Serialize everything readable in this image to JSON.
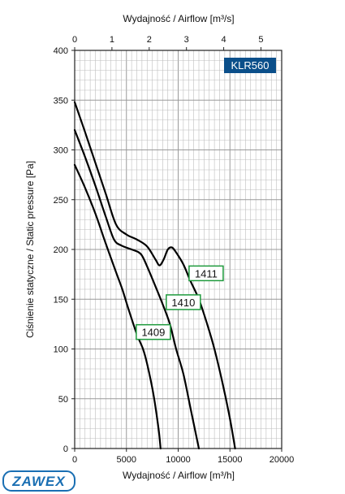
{
  "brand": {
    "logo_text": "ZAWEX",
    "color": "#1a6fb3"
  },
  "chart_data": {
    "type": "line",
    "model_badge": "KLR560",
    "model_badge_color": "#0b4f8a",
    "label_box_color": "#1e9a3c",
    "xlabel": "Wydajność / Airflow [m³/h]",
    "x2label": "Wydajność / Airflow [m³/s]",
    "ylabel": "Ciśnienie statyczne / Static pressure [Pa]",
    "xlim": [
      0,
      20000
    ],
    "ylim": [
      0,
      400
    ],
    "x2lim": [
      0,
      5.556
    ],
    "x_ticks": [
      "0",
      "5000",
      "10000",
      "15000",
      "20000"
    ],
    "x2_ticks": [
      "0",
      "1",
      "2",
      "3",
      "4",
      "5"
    ],
    "y_ticks": [
      "0",
      "50",
      "100",
      "150",
      "200",
      "250",
      "300",
      "350",
      "400"
    ],
    "grid": true,
    "series": [
      {
        "name": "1409",
        "x": [
          0,
          1000,
          2000,
          3000,
          4000,
          4600,
          5200,
          6000,
          6600,
          7000,
          7600,
          8100,
          8300
        ],
        "y": [
          285,
          262,
          236,
          206,
          177,
          160,
          140,
          115,
          100,
          85,
          55,
          20,
          0
        ]
      },
      {
        "name": "1410",
        "x": [
          0,
          1000,
          2000,
          3000,
          3800,
          4500,
          5500,
          6200,
          6600,
          7200,
          7800,
          8500,
          9200,
          9800,
          10500,
          11200,
          11700,
          12000
        ],
        "y": [
          320,
          293,
          264,
          233,
          210,
          204,
          200,
          197,
          192,
          178,
          163,
          145,
          125,
          100,
          75,
          40,
          15,
          0
        ]
      },
      {
        "name": "1411",
        "x": [
          0,
          1000,
          2000,
          3000,
          4000,
          5000,
          6000,
          7000,
          7800,
          8200,
          8600,
          9000,
          9400,
          9800,
          10500,
          11200,
          12000,
          12800,
          13500,
          14300,
          15000,
          15500
        ],
        "y": [
          348,
          318,
          287,
          256,
          225,
          215,
          210,
          203,
          190,
          184,
          190,
          200,
          202,
          197,
          185,
          168,
          150,
          125,
          100,
          65,
          30,
          0
        ]
      }
    ],
    "label_positions": [
      {
        "name": "1409",
        "x": 7600,
        "y": 117
      },
      {
        "name": "1410",
        "x": 10500,
        "y": 147
      },
      {
        "name": "1411",
        "x": 12700,
        "y": 176
      }
    ]
  }
}
